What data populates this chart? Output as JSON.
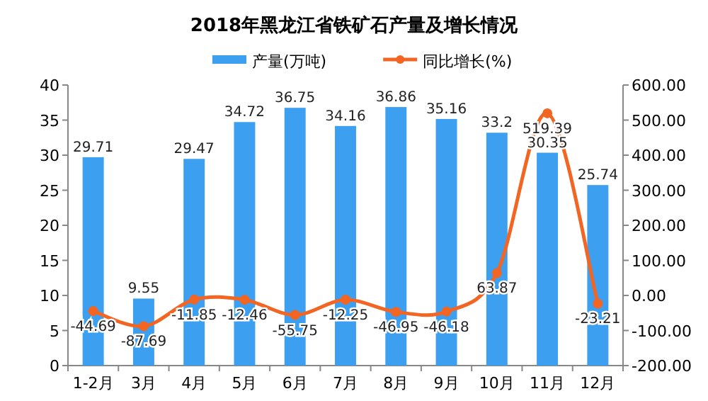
{
  "chart_data": {
    "type": "bar",
    "title": "2018年黑龙江省铁矿石产量及增长情况",
    "categories": [
      "1-2月",
      "3月",
      "4月",
      "5月",
      "6月",
      "7月",
      "8月",
      "9月",
      "10月",
      "11月",
      "12月"
    ],
    "series": [
      {
        "name": "产量(万吨)",
        "color": "#3d9ff0",
        "values": [
          29.71,
          9.55,
          29.47,
          34.72,
          36.75,
          34.16,
          36.86,
          35.16,
          33.2,
          30.35,
          25.74
        ]
      },
      {
        "name": "同比增长(%)",
        "type": "line",
        "axis": "y2",
        "color": "#f26522",
        "marker": "circle",
        "values": [
          -44.69,
          -87.69,
          -11.85,
          -12.46,
          -55.75,
          -12.25,
          -46.95,
          -46.18,
          63.87,
          519.39,
          -23.21
        ]
      }
    ],
    "ylim": [
      0,
      40
    ],
    "yticks": [
      0,
      5,
      10,
      15,
      20,
      25,
      30,
      35,
      40
    ],
    "y2lim": [
      -200,
      600
    ],
    "y2ticks": [
      {
        "value": -200,
        "label": "-200.00"
      },
      {
        "value": -100,
        "label": "-100.00"
      },
      {
        "value": 0,
        "label": "0.00"
      },
      {
        "value": 100,
        "label": "100.00"
      },
      {
        "value": 200,
        "label": "200.00"
      },
      {
        "value": 300,
        "label": "300.00"
      },
      {
        "value": 400,
        "label": "400.00"
      },
      {
        "value": 500,
        "label": "500.00"
      },
      {
        "value": 600,
        "label": "600.00"
      }
    ],
    "data_labels": true,
    "legend": "top",
    "grid": false
  }
}
